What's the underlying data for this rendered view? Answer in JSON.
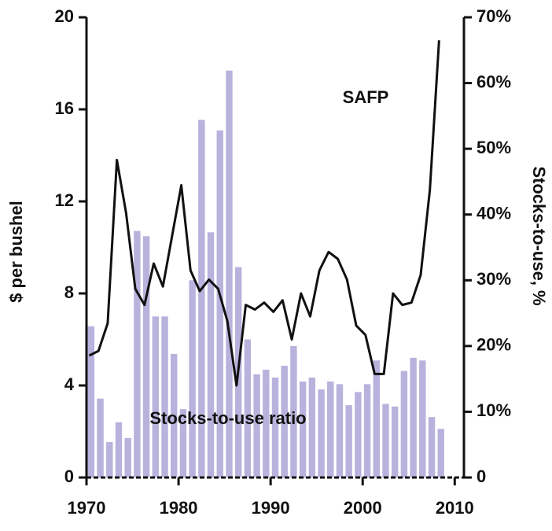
{
  "chart_data": {
    "type": "combo",
    "x": [
      1970,
      1971,
      1972,
      1973,
      1974,
      1975,
      1976,
      1977,
      1978,
      1979,
      1980,
      1981,
      1982,
      1983,
      1984,
      1985,
      1986,
      1987,
      1988,
      1989,
      1990,
      1991,
      1992,
      1993,
      1994,
      1995,
      1996,
      1997,
      1998,
      1999,
      2000,
      2001,
      2002,
      2003,
      2004,
      2005,
      2006,
      2007,
      2008
    ],
    "series": [
      {
        "name": "Stocks-to-use ratio",
        "type": "bar",
        "axis": "y2",
        "color": "#b8b3dd",
        "values": [
          23,
          12,
          5.4,
          8.4,
          6,
          37.5,
          36.7,
          24.5,
          24.5,
          18.8,
          10.4,
          30,
          54.4,
          37.3,
          52.8,
          61.9,
          32,
          21,
          15.7,
          16.4,
          15.2,
          17,
          20,
          14.6,
          15.2,
          13.4,
          14.6,
          14.2,
          11,
          13,
          14.2,
          17.8,
          11.2,
          10.8,
          16.2,
          18.2,
          17.8,
          9.2,
          7.4
        ]
      },
      {
        "name": "SAFP",
        "type": "line",
        "axis": "y",
        "color": "#111111",
        "values": [
          5.3,
          5.5,
          6.7,
          13.8,
          11.5,
          8.2,
          7.5,
          9.3,
          8.3,
          10.5,
          12.7,
          9,
          8.1,
          8.6,
          8.2,
          6.8,
          4.0,
          7.5,
          7.3,
          7.6,
          7.2,
          7.7,
          6.0,
          8.0,
          7.0,
          9.0,
          9.8,
          9.5,
          8.6,
          6.6,
          6.2,
          4.5,
          4.5,
          8.0,
          7.5,
          7.6,
          8.8,
          12.5,
          19.0
        ]
      }
    ],
    "ylabel": "$ per bushel",
    "y2label": "Stocks-to-use, %",
    "xlim": [
      1970,
      2011
    ],
    "xticks": [
      1970,
      1980,
      1990,
      2000,
      2010
    ],
    "ylim": [
      0,
      20
    ],
    "yticks": [
      0,
      4,
      8,
      12,
      16,
      20
    ],
    "y2lim": [
      0,
      70
    ],
    "y2ticks": [
      0,
      {
        "value": 10,
        "label": "10%"
      },
      {
        "value": 20,
        "label": "20%"
      },
      {
        "value": 30,
        "label": "30%"
      },
      {
        "value": 40,
        "label": "40%"
      },
      {
        "value": 50,
        "label": "50%"
      },
      {
        "value": 60,
        "label": "60%"
      },
      {
        "value": 70,
        "label": "70%"
      }
    ]
  }
}
